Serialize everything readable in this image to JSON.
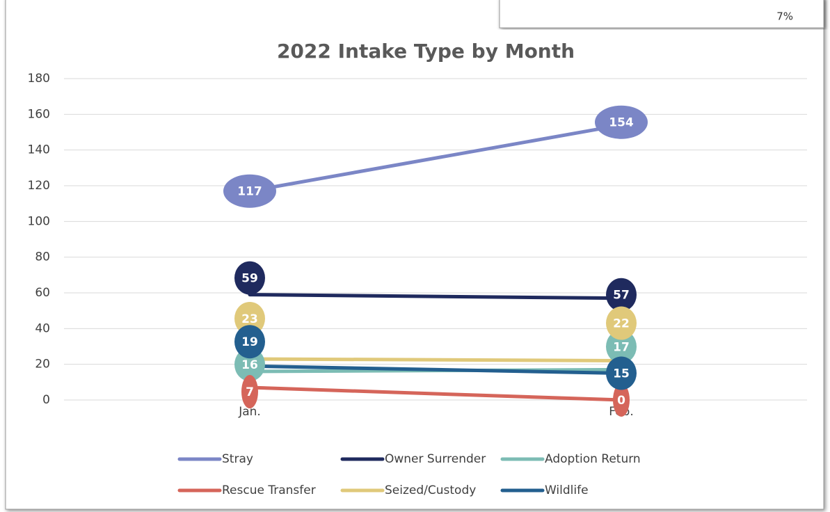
{
  "background_label": "7%",
  "chart_data": {
    "type": "line",
    "title": "2022 Intake Type by Month",
    "categories": [
      "Jan.",
      "Feb."
    ],
    "series": [
      {
        "name": "Stray",
        "color": "#7b86c6",
        "values": [
          117,
          154
        ]
      },
      {
        "name": "Owner Surrender",
        "color": "#1f2a5e",
        "values": [
          59,
          57
        ]
      },
      {
        "name": "Adoption Return",
        "color": "#7cbcb4",
        "values": [
          16,
          17
        ]
      },
      {
        "name": "Rescue Transfer",
        "color": "#d5655a",
        "values": [
          7,
          0
        ]
      },
      {
        "name": "Seized/Custody",
        "color": "#e0c97a",
        "values": [
          23,
          22
        ]
      },
      {
        "name": "Wildlife",
        "color": "#235f8f",
        "values": [
          19,
          15
        ]
      }
    ],
    "ylim": [
      0,
      180
    ],
    "yticks": [
      0,
      20,
      40,
      60,
      80,
      100,
      120,
      140,
      160,
      180
    ],
    "grid": true,
    "legend": "bottom",
    "data_labels": true
  }
}
